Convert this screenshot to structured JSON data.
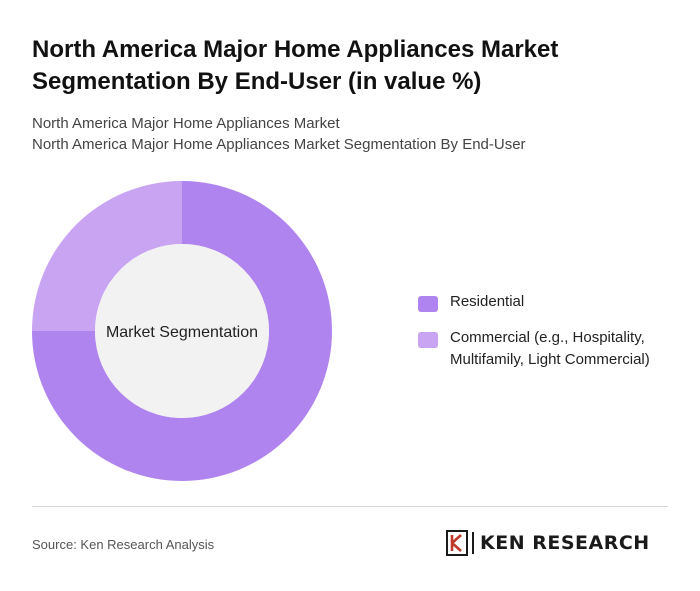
{
  "header": {
    "title": "North America Major Home Appliances Market Segmentation By End-User (in value %)",
    "subtitle_line1": "North America Major Home Appliances Market",
    "subtitle_line2": "North America Major Home Appliances Market Segmentation By End-User"
  },
  "chart_data": {
    "type": "pie",
    "variant": "donut",
    "center_label": "Market Segmentation",
    "categories": [
      "Residential",
      "Commercial (e.g., Hospitality, Multifamily, Light Commercial)"
    ],
    "values": [
      75,
      25
    ],
    "colors": [
      "#b084ee",
      "#c9a4f2"
    ],
    "legend_placement": "right"
  },
  "legend": {
    "items": [
      {
        "label": "Residential",
        "color": "#b084ee"
      },
      {
        "label": "Commercial (e.g., Hospitality, Multifamily, Light Commercial)",
        "color": "#c9a4f2"
      }
    ]
  },
  "footer": {
    "source": "Source: Ken Research Analysis",
    "logo_text": "KEN RESEARCH"
  }
}
